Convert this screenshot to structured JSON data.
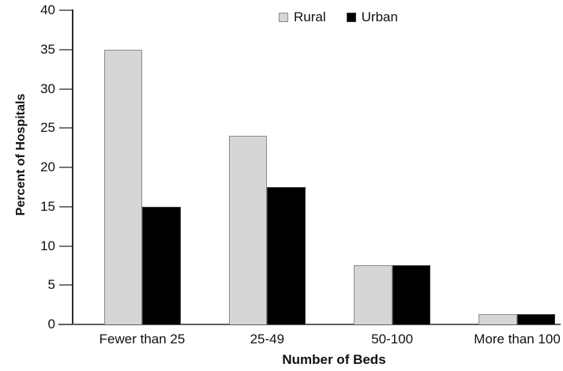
{
  "figure": {
    "background": "#ffffff"
  },
  "chart_data": {
    "type": "bar",
    "title": "",
    "categories": [
      "Fewer than 25",
      "25-49",
      "50-100",
      "More than 100"
    ],
    "series": [
      {
        "name": "Rural",
        "values": [
          35,
          24,
          7.5,
          1.3
        ],
        "color": "#d6d6d6",
        "border_color": "#8c8c8c"
      },
      {
        "name": "Urban",
        "values": [
          15,
          17.5,
          7.5,
          1.3
        ],
        "color": "#000000",
        "border_color": "#3a3a3a"
      }
    ],
    "xlabel": "Number of Beds",
    "ylabel": "Percent of Hospitals",
    "ylim": [
      0,
      40
    ],
    "yticks": [
      0,
      5,
      10,
      15,
      20,
      25,
      30,
      35,
      40
    ],
    "grid": false,
    "legend": {
      "position": "top-center",
      "entries": [
        "Rural",
        "Urban"
      ]
    },
    "axis_color": "#2b2b2b",
    "tick_color": "#787878"
  }
}
